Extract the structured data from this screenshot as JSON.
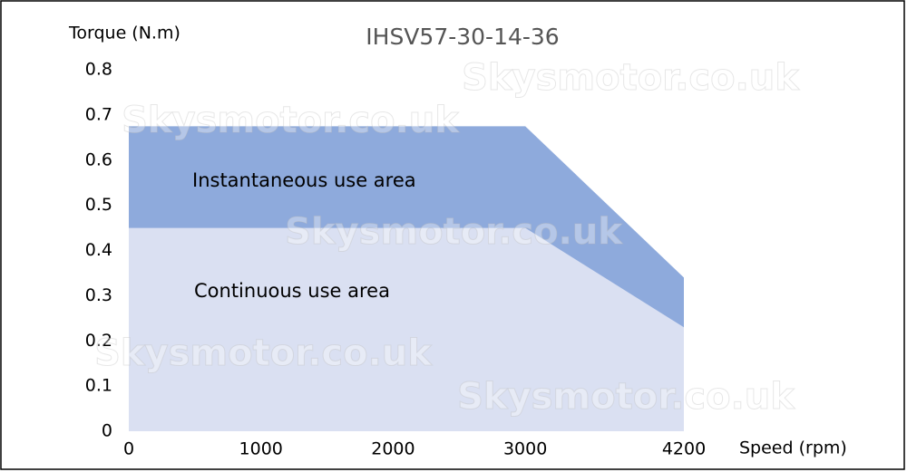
{
  "chart_data": {
    "type": "area",
    "title": "IHSV57-30-14-36",
    "x_label": "Speed (rpm)",
    "y_label": "Torque (N.m)",
    "x": [
      0,
      3000,
      4200
    ],
    "series": [
      {
        "name": "Instantaneous use area",
        "color": "#8eaadc",
        "values": [
          0.675,
          0.675,
          0.34
        ]
      },
      {
        "name": "Continuous use area",
        "color": "#dae0f2",
        "values": [
          0.45,
          0.45,
          0.23
        ]
      }
    ],
    "xlim": [
      0,
      4200
    ],
    "xticks": [
      0,
      1000,
      2000,
      3000,
      4200
    ],
    "ylim": [
      0,
      0.8
    ],
    "yticks": [
      0,
      0.1,
      0.2,
      0.3,
      0.4,
      0.5,
      0.6,
      0.7,
      0.8
    ],
    "grid": false,
    "watermark": "Skysmotor.co.uk"
  }
}
